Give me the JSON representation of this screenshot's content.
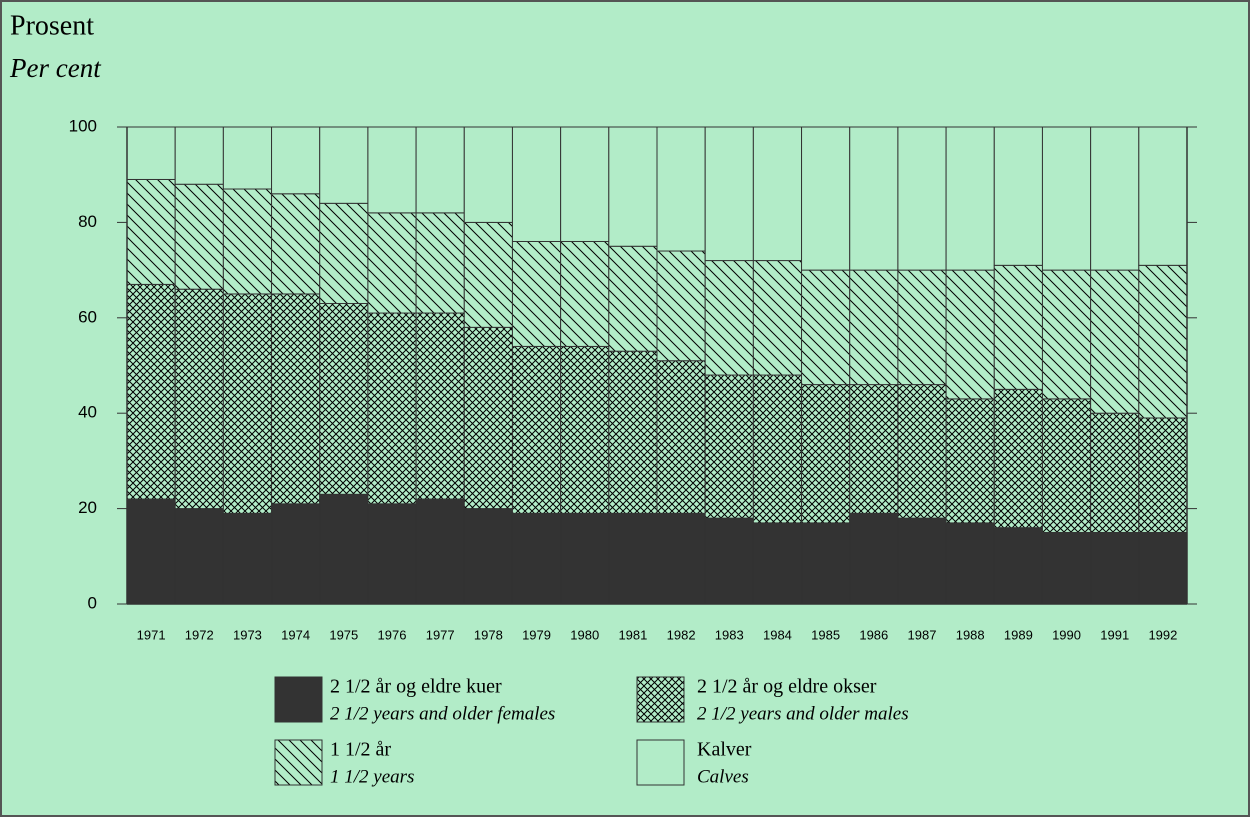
{
  "chart_data": {
    "type": "stacked_bar",
    "ylabel": "Prosent",
    "ylabel_en": "Per cent",
    "categories": [
      "1971",
      "1972",
      "1973",
      "1974",
      "1975",
      "1976",
      "1977",
      "1978",
      "1979",
      "1980",
      "1981",
      "1982",
      "1983",
      "1984",
      "1985",
      "1986",
      "1987",
      "1988",
      "1989",
      "1990",
      "1991",
      "1992"
    ],
    "series": [
      {
        "name": "2 1/2 år og eldre kuer",
        "name_en": "2 1/2 years and older females",
        "color": "#333333",
        "pattern": "solid",
        "values": [
          22,
          20,
          19,
          21,
          23,
          21,
          22,
          20,
          19,
          19,
          19,
          19,
          18,
          17,
          17,
          19,
          18,
          17,
          16,
          15,
          15,
          15
        ]
      },
      {
        "name": "2 1/2 år og eldre okser",
        "name_en": "2 1/2 years and older males",
        "color": "#5d7266",
        "pattern": "crosshatch",
        "values": [
          45,
          46,
          46,
          44,
          40,
          40,
          39,
          38,
          35,
          35,
          34,
          32,
          30,
          31,
          29,
          27,
          28,
          26,
          29,
          28,
          25,
          24
        ]
      },
      {
        "name": "1 1/2 år",
        "name_en": "1 1/2 years",
        "color": "#4a5a50",
        "pattern": "diagonal",
        "values": [
          22,
          22,
          22,
          21,
          21,
          21,
          21,
          22,
          22,
          22,
          22,
          23,
          24,
          24,
          24,
          24,
          24,
          27,
          26,
          27,
          30,
          32
        ]
      },
      {
        "name": "Kalver",
        "name_en": "Calves",
        "color": "#b2ecc8",
        "pattern": "none",
        "values": [
          11,
          12,
          13,
          14,
          16,
          18,
          18,
          20,
          24,
          24,
          25,
          26,
          28,
          28,
          30,
          30,
          30,
          30,
          29,
          30,
          30,
          29
        ]
      }
    ],
    "ylim": [
      0,
      100
    ],
    "yticks": [
      0,
      20,
      40,
      60,
      80,
      100
    ]
  }
}
